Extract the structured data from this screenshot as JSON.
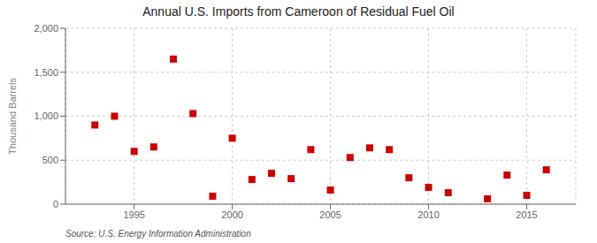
{
  "chart_data": {
    "type": "scatter",
    "title": "Annual U.S. Imports from Cameroon of Residual Fuel Oil",
    "ylabel": "Thousand Barrels",
    "annotations": [
      "Source: U.S. Energy Information Administration"
    ],
    "x": [
      1993,
      1994,
      1995,
      1996,
      1997,
      1998,
      1999,
      2000,
      2001,
      2002,
      2003,
      2004,
      2005,
      2006,
      2007,
      2008,
      2009,
      2010,
      2011,
      2013,
      2014,
      2015,
      2016
    ],
    "values": [
      900,
      1000,
      600,
      650,
      1650,
      1030,
      90,
      750,
      280,
      350,
      290,
      620,
      160,
      530,
      640,
      620,
      300,
      190,
      130,
      60,
      330,
      100,
      390
    ],
    "color": "#cc0000",
    "marker": "square",
    "xlim": [
      1991.5,
      2017.5
    ],
    "xticks": [
      1995,
      2000,
      2005,
      2010,
      2015
    ],
    "ylim": [
      0,
      2000
    ],
    "yticks": [
      0,
      500,
      {
        "value": 1000,
        "label": "1,000"
      },
      {
        "value": 1500,
        "label": "1,500"
      },
      {
        "value": 2000,
        "label": "2,000"
      }
    ],
    "grid": true
  }
}
